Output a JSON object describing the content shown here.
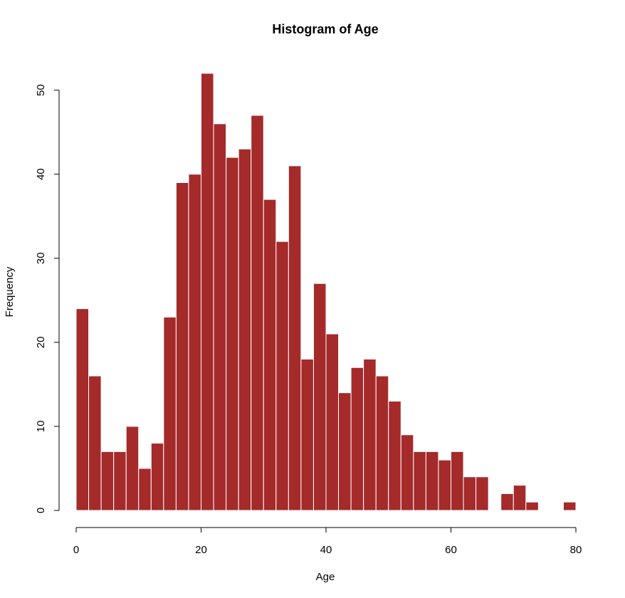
{
  "chart_data": {
    "type": "bar",
    "title": "Histogram of Age",
    "xlabel": "Age",
    "ylabel": "Frequency",
    "bar_color": "#A52A2A",
    "bar_border_color": "#FFFFFF",
    "bin_width": 2,
    "xlim": [
      0,
      80
    ],
    "ylim": [
      0,
      52
    ],
    "xticks": [
      0,
      20,
      40,
      60,
      80
    ],
    "yticks": [
      0,
      10,
      20,
      30,
      40,
      50
    ],
    "grid": false,
    "bins": [
      {
        "x0": 0,
        "x1": 2,
        "count": 24
      },
      {
        "x0": 2,
        "x1": 4,
        "count": 16
      },
      {
        "x0": 4,
        "x1": 6,
        "count": 7
      },
      {
        "x0": 6,
        "x1": 8,
        "count": 7
      },
      {
        "x0": 8,
        "x1": 10,
        "count": 10
      },
      {
        "x0": 10,
        "x1": 12,
        "count": 5
      },
      {
        "x0": 12,
        "x1": 14,
        "count": 8
      },
      {
        "x0": 14,
        "x1": 16,
        "count": 23
      },
      {
        "x0": 16,
        "x1": 18,
        "count": 39
      },
      {
        "x0": 18,
        "x1": 20,
        "count": 40
      },
      {
        "x0": 20,
        "x1": 22,
        "count": 52
      },
      {
        "x0": 22,
        "x1": 24,
        "count": 46
      },
      {
        "x0": 24,
        "x1": 26,
        "count": 42
      },
      {
        "x0": 26,
        "x1": 28,
        "count": 43
      },
      {
        "x0": 28,
        "x1": 30,
        "count": 47
      },
      {
        "x0": 30,
        "x1": 32,
        "count": 37
      },
      {
        "x0": 32,
        "x1": 34,
        "count": 32
      },
      {
        "x0": 34,
        "x1": 36,
        "count": 41
      },
      {
        "x0": 36,
        "x1": 38,
        "count": 18
      },
      {
        "x0": 38,
        "x1": 40,
        "count": 27
      },
      {
        "x0": 40,
        "x1": 42,
        "count": 21
      },
      {
        "x0": 42,
        "x1": 44,
        "count": 14
      },
      {
        "x0": 44,
        "x1": 46,
        "count": 17
      },
      {
        "x0": 46,
        "x1": 48,
        "count": 18
      },
      {
        "x0": 48,
        "x1": 50,
        "count": 16
      },
      {
        "x0": 50,
        "x1": 52,
        "count": 13
      },
      {
        "x0": 52,
        "x1": 54,
        "count": 9
      },
      {
        "x0": 54,
        "x1": 56,
        "count": 7
      },
      {
        "x0": 56,
        "x1": 58,
        "count": 7
      },
      {
        "x0": 58,
        "x1": 60,
        "count": 6
      },
      {
        "x0": 60,
        "x1": 62,
        "count": 7
      },
      {
        "x0": 62,
        "x1": 64,
        "count": 4
      },
      {
        "x0": 64,
        "x1": 66,
        "count": 4
      },
      {
        "x0": 66,
        "x1": 68,
        "count": 0
      },
      {
        "x0": 68,
        "x1": 70,
        "count": 2
      },
      {
        "x0": 70,
        "x1": 72,
        "count": 3
      },
      {
        "x0": 72,
        "x1": 74,
        "count": 1
      },
      {
        "x0": 74,
        "x1": 76,
        "count": 0
      },
      {
        "x0": 76,
        "x1": 78,
        "count": 0
      },
      {
        "x0": 78,
        "x1": 80,
        "count": 1
      }
    ]
  }
}
